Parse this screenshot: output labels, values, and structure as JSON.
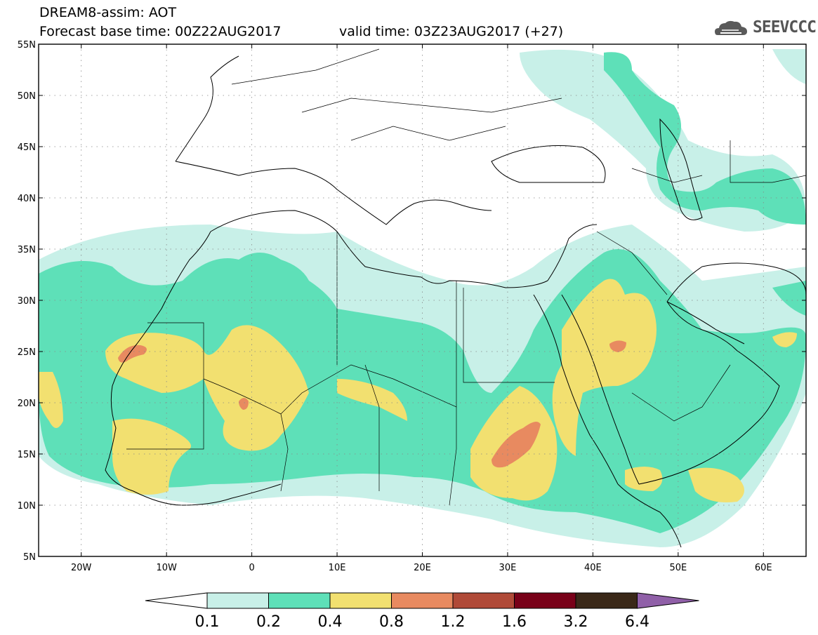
{
  "title": {
    "line1": "DREAM8-assim: AOT",
    "base_time": "Forecast base time: 00Z22AUG2017",
    "valid_time": "valid time: 03Z23AUG2017 (+27)"
  },
  "logo": {
    "text": "SEEVCCC",
    "icon": "cloud-icon"
  },
  "axes": {
    "lat_labels": [
      "55N",
      "50N",
      "45N",
      "40N",
      "35N",
      "30N",
      "25N",
      "20N",
      "15N",
      "10N",
      "5N"
    ],
    "lat_values": [
      55,
      50,
      45,
      40,
      35,
      30,
      25,
      20,
      15,
      10,
      5
    ],
    "lon_labels": [
      "20W",
      "10W",
      "0",
      "10E",
      "20E",
      "30E",
      "40E",
      "50E",
      "60E"
    ],
    "lon_values": [
      -20,
      -10,
      0,
      10,
      20,
      30,
      40,
      50,
      60
    ],
    "lon_range": [
      -25,
      65
    ],
    "lat_range": [
      5,
      55
    ],
    "grid": "dotted"
  },
  "legend": {
    "labels": [
      "0.1",
      "0.2",
      "0.4",
      "0.8",
      "1.2",
      "1.6",
      "3.2",
      "6.4"
    ],
    "colors": [
      "#ffffff",
      "#c8f0e8",
      "#5ee0b8",
      "#f2e070",
      "#e88a60",
      "#b04a38",
      "#780018",
      "#3a2818",
      "#9060a8"
    ]
  },
  "colors": {
    "lvl1": "#c8f0e8",
    "lvl2": "#5ee0b8",
    "lvl3": "#f2e070",
    "lvl4": "#e88a60"
  }
}
